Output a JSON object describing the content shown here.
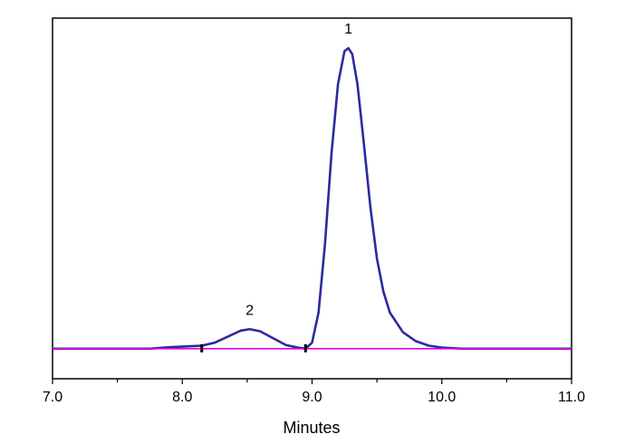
{
  "chart_data": {
    "type": "line",
    "title": "",
    "xlabel": "Minutes",
    "ylabel": "",
    "xlim": [
      7.0,
      11.0
    ],
    "ylim": [
      -0.1,
      1.1
    ],
    "x_ticks": [
      "7.0",
      "8.0",
      "9.0",
      "10.0",
      "11.0"
    ],
    "y_ticks": [],
    "grid": false,
    "legend": "none",
    "series": [
      {
        "color": "#2b2a9e",
        "x": [
          7.0,
          7.75,
          7.9,
          8.05,
          8.15,
          8.25,
          8.35,
          8.45,
          8.52,
          8.6,
          8.7,
          8.8,
          8.9,
          8.95,
          9.0,
          9.05,
          9.1,
          9.15,
          9.2,
          9.25,
          9.28,
          9.31,
          9.35,
          9.4,
          9.45,
          9.5,
          9.55,
          9.6,
          9.7,
          9.8,
          9.9,
          10.0,
          10.15,
          11.0
        ],
        "y": [
          0.0,
          0.0,
          0.005,
          0.008,
          0.01,
          0.02,
          0.04,
          0.06,
          0.065,
          0.058,
          0.035,
          0.012,
          0.003,
          0.0,
          0.02,
          0.12,
          0.35,
          0.65,
          0.88,
          0.99,
          1.0,
          0.98,
          0.88,
          0.68,
          0.47,
          0.3,
          0.19,
          0.12,
          0.055,
          0.025,
          0.01,
          0.004,
          0.0,
          0.0
        ]
      },
      {
        "color": "#e000e0",
        "x": [
          7.0,
          11.0
        ],
        "y": [
          0.0,
          0.0
        ]
      }
    ],
    "annotations": [
      {
        "text": "1",
        "x": 9.28,
        "y": 1.0
      },
      {
        "text": "2",
        "x": 8.52,
        "y": 0.065
      }
    ],
    "integration_markers_x": [
      8.15,
      8.95
    ]
  }
}
